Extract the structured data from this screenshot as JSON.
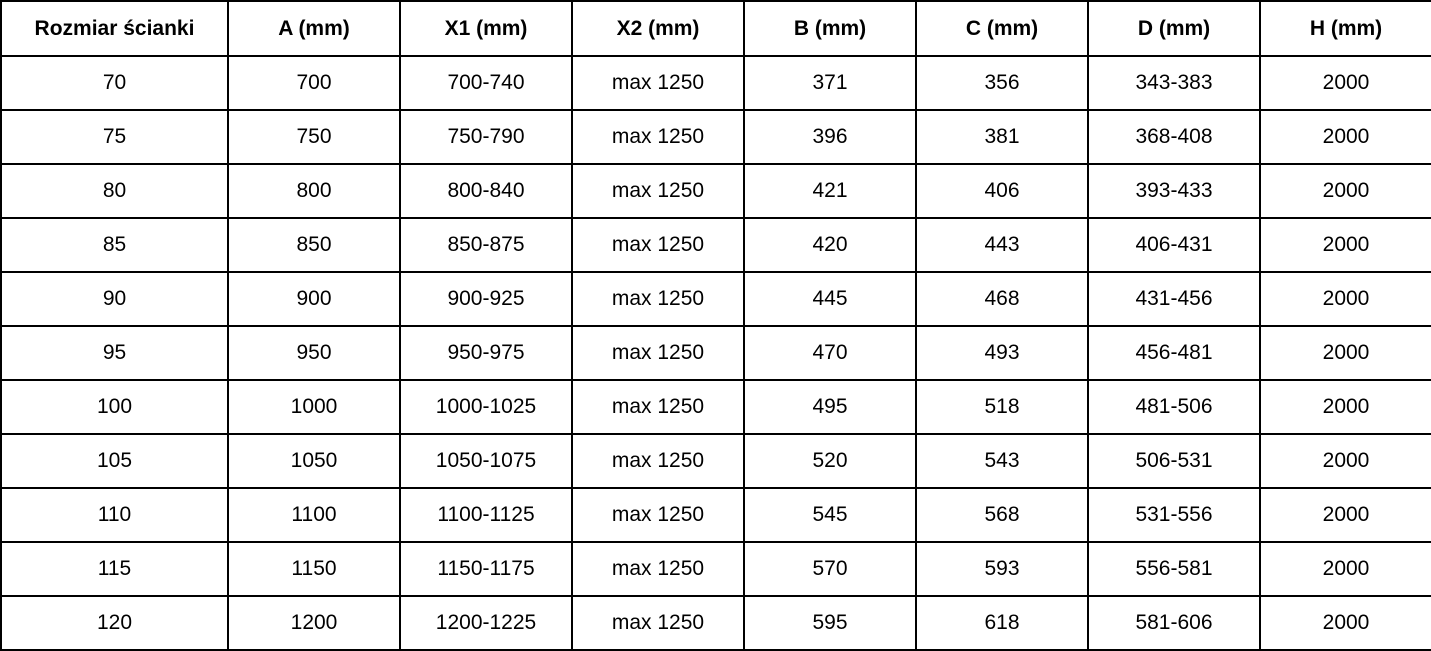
{
  "table": {
    "columns": [
      "Rozmiar ścianki",
      "A (mm)",
      "X1 (mm)",
      "X2 (mm)",
      "B (mm)",
      "C (mm)",
      "D (mm)",
      "H (mm)"
    ],
    "rows": [
      [
        "70",
        "700",
        "700-740",
        "max 1250",
        "371",
        "356",
        "343-383",
        "2000"
      ],
      [
        "75",
        "750",
        "750-790",
        "max 1250",
        "396",
        "381",
        "368-408",
        "2000"
      ],
      [
        "80",
        "800",
        "800-840",
        "max 1250",
        "421",
        "406",
        "393-433",
        "2000"
      ],
      [
        "85",
        "850",
        "850-875",
        "max 1250",
        "420",
        "443",
        "406-431",
        "2000"
      ],
      [
        "90",
        "900",
        "900-925",
        "max 1250",
        "445",
        "468",
        "431-456",
        "2000"
      ],
      [
        "95",
        "950",
        "950-975",
        "max 1250",
        "470",
        "493",
        "456-481",
        "2000"
      ],
      [
        "100",
        "1000",
        "1000-1025",
        "max 1250",
        "495",
        "518",
        "481-506",
        "2000"
      ],
      [
        "105",
        "1050",
        "1050-1075",
        "max 1250",
        "520",
        "543",
        "506-531",
        "2000"
      ],
      [
        "110",
        "1100",
        "1100-1125",
        "max 1250",
        "545",
        "568",
        "531-556",
        "2000"
      ],
      [
        "115",
        "1150",
        "1150-1175",
        "max 1250",
        "570",
        "593",
        "556-581",
        "2000"
      ],
      [
        "120",
        "1200",
        "1200-1225",
        "max 1250",
        "595",
        "618",
        "581-606",
        "2000"
      ]
    ],
    "border_color": "#000000",
    "text_color": "#000000",
    "background_color": "#ffffff"
  }
}
